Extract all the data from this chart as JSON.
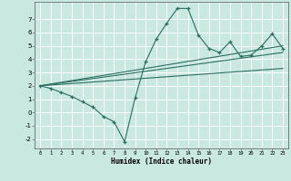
{
  "xlabel": "Humidex (Indice chaleur)",
  "xlim": [
    -0.5,
    23.5
  ],
  "ylim": [
    -2.7,
    8.3
  ],
  "xticks": [
    0,
    1,
    2,
    3,
    4,
    5,
    6,
    7,
    8,
    9,
    10,
    11,
    12,
    13,
    14,
    15,
    16,
    17,
    18,
    19,
    20,
    21,
    22,
    23
  ],
  "yticks": [
    -2,
    -1,
    0,
    1,
    2,
    3,
    4,
    5,
    6,
    7
  ],
  "bg_color": "#c8e8e0",
  "line_color": "#2a6e60",
  "grid_color": "#ffffff",
  "curve_x": [
    0,
    1,
    2,
    3,
    4,
    5,
    6,
    7,
    8,
    9,
    10,
    11,
    12,
    13,
    14,
    15,
    16,
    17,
    18,
    19,
    20,
    21,
    22,
    23
  ],
  "curve_y": [
    2.0,
    1.8,
    1.5,
    1.2,
    0.8,
    0.4,
    -0.3,
    -0.7,
    -2.2,
    1.1,
    3.8,
    5.5,
    6.7,
    7.8,
    7.8,
    5.8,
    4.8,
    4.5,
    5.3,
    4.2,
    4.3,
    5.0,
    5.9,
    4.8
  ],
  "line2_x": [
    0,
    23
  ],
  "line2_y": [
    2.0,
    5.0
  ],
  "line3_x": [
    0,
    23
  ],
  "line3_y": [
    2.0,
    4.5
  ],
  "line4_x": [
    0,
    23
  ],
  "line4_y": [
    2.0,
    3.3
  ]
}
